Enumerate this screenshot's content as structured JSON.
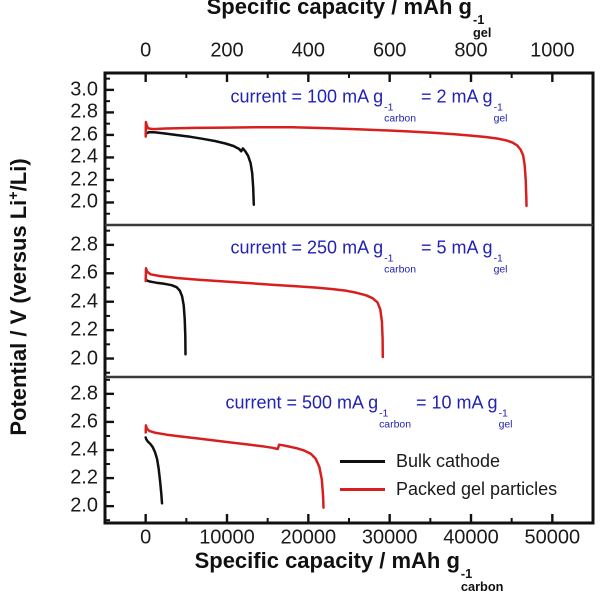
{
  "figure": {
    "background": "#ffffff",
    "colors": {
      "axis": "#111111",
      "divider": "#3a3a3a",
      "tick_label": "#1a1a1a",
      "annotation_blue": "#2222b8",
      "series_black": "#101010",
      "series_red": "#d81f1f"
    }
  },
  "chart_data": {
    "type": "line",
    "title": "",
    "xlabel_bottom": "Specific capacity / mAh g^-1 carbon",
    "xlabel_top": "Specific capacity / mAh g^-1 gel",
    "ylabel": "Potential / V (versus Li+/Li)",
    "grid": false,
    "legend_position": "inside bottom-right of panel 3",
    "bottom_axis": {
      "title_segments": [
        {
          "t": "Specific capacity / mAh g"
        },
        {
          "stack": [
            "-1",
            "carbon"
          ]
        }
      ],
      "tick_values": [
        0,
        10000,
        20000,
        30000,
        40000,
        50000
      ],
      "xlim": [
        -5000,
        55000
      ]
    },
    "top_axis": {
      "title_segments": [
        {
          "t": "Specific capacity / mAh g"
        },
        {
          "stack": [
            "-1",
            "gel"
          ]
        }
      ],
      "tick_values": [
        0,
        200,
        400,
        600,
        800,
        1000
      ],
      "xlim": [
        -100,
        1100
      ]
    },
    "left_axis": {
      "title_segments": [
        {
          "t": "Potential / V (versus Li"
        },
        {
          "sup": "+"
        },
        {
          "t": "/Li)"
        }
      ]
    },
    "legend": {
      "items": [
        {
          "label": "Bulk cathode",
          "color": "#101010"
        },
        {
          "label": "Packed gel particles",
          "color": "#d81f1f"
        }
      ]
    },
    "panels": [
      {
        "annotation_plain": "current = 100 mA g^-1 carbon = 2 mA g^-1 gel",
        "annotation_segments": [
          {
            "t": "current = 100 mA g"
          },
          {
            "stack": [
              "-1",
              "carbon"
            ]
          },
          {
            "t": " = 2 mA g"
          },
          {
            "stack": [
              "-1",
              "gel"
            ]
          }
        ],
        "ylim": [
          1.8,
          3.15
        ],
        "yticks": [
          3.0,
          2.8,
          2.6,
          2.4,
          2.2,
          2.0
        ],
        "series": [
          {
            "name": "Bulk cathode",
            "color": "#101010",
            "points": [
              [
                0,
                2.61
              ],
              [
                400,
                2.625
              ],
              [
                1200,
                2.622
              ],
              [
                2500,
                2.612
              ],
              [
                4000,
                2.598
              ],
              [
                5500,
                2.583
              ],
              [
                7000,
                2.566
              ],
              [
                8500,
                2.546
              ],
              [
                9800,
                2.524
              ],
              [
                10800,
                2.502
              ],
              [
                11500,
                2.475
              ],
              [
                11750,
                2.455
              ],
              [
                11950,
                2.48
              ],
              [
                12250,
                2.455
              ],
              [
                12600,
                2.415
              ],
              [
                12900,
                2.35
              ],
              [
                13100,
                2.26
              ],
              [
                13220,
                2.13
              ],
              [
                13290,
                1.98
              ]
            ]
          },
          {
            "name": "Packed gel particles",
            "color": "#d81f1f",
            "points": [
              [
                0,
                2.585
              ],
              [
                30,
                2.715
              ],
              [
                120,
                2.69
              ],
              [
                300,
                2.658
              ],
              [
                900,
                2.652
              ],
              [
                2500,
                2.657
              ],
              [
                6000,
                2.662
              ],
              [
                10000,
                2.665
              ],
              [
                14000,
                2.669
              ],
              [
                18000,
                2.668
              ],
              [
                22000,
                2.661
              ],
              [
                26000,
                2.651
              ],
              [
                29500,
                2.64
              ],
              [
                32500,
                2.63
              ],
              [
                35500,
                2.618
              ],
              [
                38000,
                2.606
              ],
              [
                40000,
                2.594
              ],
              [
                41800,
                2.582
              ],
              [
                43200,
                2.568
              ],
              [
                44300,
                2.552
              ],
              [
                45100,
                2.532
              ],
              [
                45700,
                2.505
              ],
              [
                46100,
                2.47
              ],
              [
                46400,
                2.42
              ],
              [
                46600,
                2.33
              ],
              [
                46730,
                2.2
              ],
              [
                46800,
                2.05
              ],
              [
                46820,
                1.97
              ]
            ]
          }
        ]
      },
      {
        "annotation_plain": "current = 250 mA g^-1 carbon = 5 mA g^-1 gel",
        "annotation_segments": [
          {
            "t": "current = 250 mA g"
          },
          {
            "stack": [
              "-1",
              "carbon"
            ]
          },
          {
            "t": " = 5 mA g"
          },
          {
            "stack": [
              "-1",
              "gel"
            ]
          }
        ],
        "ylim": [
          1.87,
          2.94
        ],
        "yticks": [
          2.8,
          2.6,
          2.4,
          2.2,
          2.0
        ],
        "series": [
          {
            "name": "Bulk cathode",
            "color": "#101010",
            "points": [
              [
                0,
                2.565
              ],
              [
                100,
                2.55
              ],
              [
                500,
                2.542
              ],
              [
                1300,
                2.534
              ],
              [
                2300,
                2.526
              ],
              [
                3200,
                2.516
              ],
              [
                3800,
                2.502
              ],
              [
                4200,
                2.478
              ],
              [
                4480,
                2.438
              ],
              [
                4680,
                2.375
              ],
              [
                4800,
                2.28
              ],
              [
                4870,
                2.16
              ],
              [
                4900,
                2.03
              ]
            ]
          },
          {
            "name": "Packed gel particles",
            "color": "#d81f1f",
            "points": [
              [
                0,
                2.545
              ],
              [
                40,
                2.635
              ],
              [
                180,
                2.612
              ],
              [
                600,
                2.593
              ],
              [
                1800,
                2.58
              ],
              [
                4000,
                2.566
              ],
              [
                6500,
                2.555
              ],
              [
                9500,
                2.543
              ],
              [
                12500,
                2.532
              ],
              [
                15500,
                2.52
              ],
              [
                18500,
                2.509
              ],
              [
                21000,
                2.499
              ],
              [
                23000,
                2.489
              ],
              [
                24700,
                2.477
              ],
              [
                26000,
                2.462
              ],
              [
                27100,
                2.445
              ],
              [
                27900,
                2.425
              ],
              [
                28500,
                2.395
              ],
              [
                28850,
                2.345
              ],
              [
                29050,
                2.26
              ],
              [
                29130,
                2.14
              ],
              [
                29160,
                2.01
              ]
            ]
          }
        ]
      },
      {
        "annotation_plain": "current = 500 mA g^-1 carbon = 10 mA g^-1 gel",
        "annotation_segments": [
          {
            "t": "current = 500 mA g"
          },
          {
            "stack": [
              "-1",
              "carbon"
            ]
          },
          {
            "t": " = 10 mA g"
          },
          {
            "stack": [
              "-1",
              "gel"
            ]
          }
        ],
        "ylim": [
          1.88,
          2.92
        ],
        "yticks": [
          2.8,
          2.6,
          2.4,
          2.2,
          2.0
        ],
        "series": [
          {
            "name": "Bulk cathode",
            "color": "#101010",
            "points": [
              [
                0,
                2.49
              ],
              [
                70,
                2.477
              ],
              [
                280,
                2.46
              ],
              [
                580,
                2.443
              ],
              [
                880,
                2.42
              ],
              [
                1150,
                2.385
              ],
              [
                1400,
                2.335
              ],
              [
                1600,
                2.265
              ],
              [
                1790,
                2.17
              ],
              [
                1930,
                2.08
              ],
              [
                2010,
                2.02
              ]
            ]
          },
          {
            "name": "Packed gel particles",
            "color": "#d81f1f",
            "points": [
              [
                0,
                2.525
              ],
              [
                30,
                2.575
              ],
              [
                140,
                2.553
              ],
              [
                450,
                2.536
              ],
              [
                1100,
                2.524
              ],
              [
                2600,
                2.509
              ],
              [
                4600,
                2.494
              ],
              [
                6600,
                2.481
              ],
              [
                8600,
                2.467
              ],
              [
                10600,
                2.453
              ],
              [
                12600,
                2.439
              ],
              [
                14300,
                2.427
              ],
              [
                15600,
                2.416
              ],
              [
                16250,
                2.407
              ],
              [
                16400,
                2.438
              ],
              [
                16800,
                2.434
              ],
              [
                17600,
                2.425
              ],
              [
                18600,
                2.412
              ],
              [
                19500,
                2.396
              ],
              [
                20300,
                2.373
              ],
              [
                20900,
                2.337
              ],
              [
                21350,
                2.28
              ],
              [
                21650,
                2.19
              ],
              [
                21820,
                2.07
              ],
              [
                21870,
                1.99
              ]
            ]
          }
        ]
      }
    ]
  }
}
